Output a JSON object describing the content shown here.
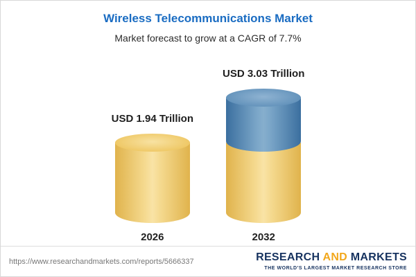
{
  "header": {
    "title": "Wireless Telecommunications Market",
    "subtitle": "Market forecast to grow at a CAGR of 7.7%"
  },
  "chart_data": {
    "type": "bar",
    "variant": "3d-cylinder",
    "categories": [
      "2026",
      "2032"
    ],
    "values": [
      1.94,
      3.03
    ],
    "value_labels": [
      "USD 1.94 Trillion",
      "USD 3.03 Trillion"
    ],
    "unit": "USD Trillion",
    "cagr": "7.7%",
    "legend_position": "none",
    "grid": false,
    "colors": {
      "base_segment": "#F0C75E",
      "growth_segment": "#4A7FAE",
      "title_accent": "#1A6CC2"
    },
    "notes": "2032 cylinder is split: gold base equals 2026 value, blue top segment shows growth to 3.03 trillion"
  },
  "footer": {
    "url": "https://www.researchandmarkets.com/reports/5666337",
    "brand": {
      "research": "RESEARCH",
      "and": " AND ",
      "markets": "MARKETS",
      "tagline": "THE WORLD'S LARGEST MARKET RESEARCH STORE"
    }
  }
}
